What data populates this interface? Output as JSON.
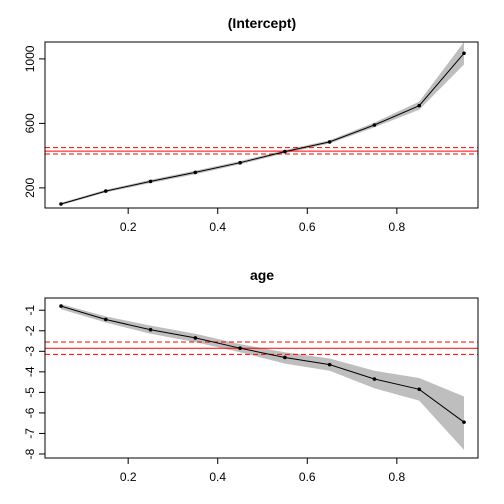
{
  "chart_data": [
    {
      "type": "line",
      "title": "(Intercept)",
      "xlabel": "",
      "ylabel": "",
      "xlim": [
        0.05,
        0.95
      ],
      "ylim": [
        100,
        1080
      ],
      "x": [
        0.05,
        0.15,
        0.25,
        0.35,
        0.45,
        0.55,
        0.65,
        0.75,
        0.85,
        0.95
      ],
      "y": [
        100,
        180,
        240,
        296,
        356,
        425,
        485,
        590,
        710,
        1035
      ],
      "ci_lower": [
        92,
        172,
        230,
        285,
        346,
        415,
        475,
        575,
        685,
        965
      ],
      "ci_upper": [
        108,
        188,
        250,
        307,
        366,
        435,
        495,
        605,
        735,
        1105
      ],
      "hlines": {
        "estimate": 428,
        "lower": 410,
        "upper": 450
      },
      "xticks": [
        "0.2",
        "0.4",
        "0.6",
        "0.8"
      ],
      "xtick_values": [
        0.2,
        0.4,
        0.6,
        0.8
      ],
      "yticks": [
        "200",
        "600",
        "1000"
      ],
      "ytick_values": [
        200,
        600,
        1000
      ],
      "colors": {
        "line": "#000000",
        "band": "#bebebe",
        "ols": "#ff0000"
      }
    },
    {
      "type": "line",
      "title": "age",
      "xlabel": "",
      "ylabel": "",
      "xlim": [
        0.05,
        0.95
      ],
      "ylim": [
        -8,
        -0.6
      ],
      "x": [
        0.05,
        0.15,
        0.25,
        0.35,
        0.45,
        0.55,
        0.65,
        0.75,
        0.85,
        0.95
      ],
      "y": [
        -0.8,
        -1.45,
        -1.95,
        -2.35,
        -2.85,
        -3.3,
        -3.65,
        -4.35,
        -4.85,
        -6.45
      ],
      "ci_lower": [
        -0.95,
        -1.6,
        -2.15,
        -2.55,
        -3.05,
        -3.6,
        -3.95,
        -4.8,
        -5.4,
        -7.8
      ],
      "ci_upper": [
        -0.7,
        -1.3,
        -1.75,
        -2.15,
        -2.65,
        -3.05,
        -3.35,
        -3.95,
        -4.3,
        -5.2
      ],
      "hlines": {
        "estimate": -2.85,
        "lower": -3.15,
        "upper": -2.55
      },
      "xticks": [
        "0.2",
        "0.4",
        "0.6",
        "0.8"
      ],
      "xtick_values": [
        0.2,
        0.4,
        0.6,
        0.8
      ],
      "yticks": [
        "-8",
        "-7",
        "-6",
        "-5",
        "-4",
        "-3",
        "-2",
        "-1"
      ],
      "ytick_values": [
        -8,
        -7,
        -6,
        -5,
        -4,
        -3,
        -2,
        -1
      ],
      "colors": {
        "line": "#000000",
        "band": "#bebebe",
        "ols": "#ff0000"
      }
    }
  ]
}
